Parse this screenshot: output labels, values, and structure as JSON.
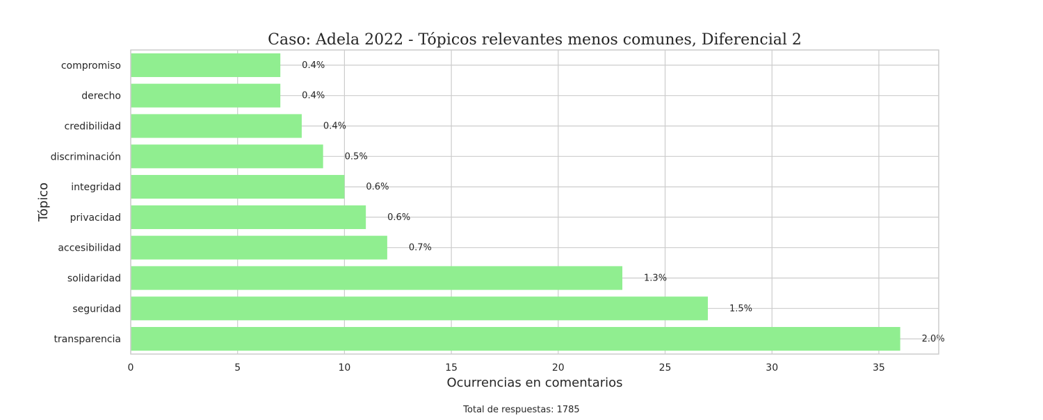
{
  "chart_data": {
    "type": "bar",
    "orientation": "horizontal",
    "title": "Caso: Adela 2022 - Tópicos relevantes menos comunes, Diferencial 2",
    "xlabel": "Ocurrencias en comentarios",
    "ylabel": "Tópico",
    "footer": "Total de respuestas: 1785",
    "categories": [
      "compromiso",
      "derecho",
      "credibilidad",
      "discriminación",
      "integridad",
      "privacidad",
      "accesibilidad",
      "solidaridad",
      "seguridad",
      "transparencia"
    ],
    "values": [
      7,
      7,
      8,
      9,
      10,
      11,
      12,
      23,
      27,
      36
    ],
    "data_labels": [
      "0.4%",
      "0.4%",
      "0.4%",
      "0.5%",
      "0.6%",
      "0.6%",
      "0.7%",
      "1.3%",
      "1.5%",
      "2.0%"
    ],
    "x_ticks": [
      "0",
      "5",
      "10",
      "15",
      "20",
      "25",
      "30",
      "35"
    ],
    "xlim": [
      0,
      37.8
    ],
    "grid": true,
    "bar_color": "#90ee90",
    "grid_color": "#cccccc"
  }
}
